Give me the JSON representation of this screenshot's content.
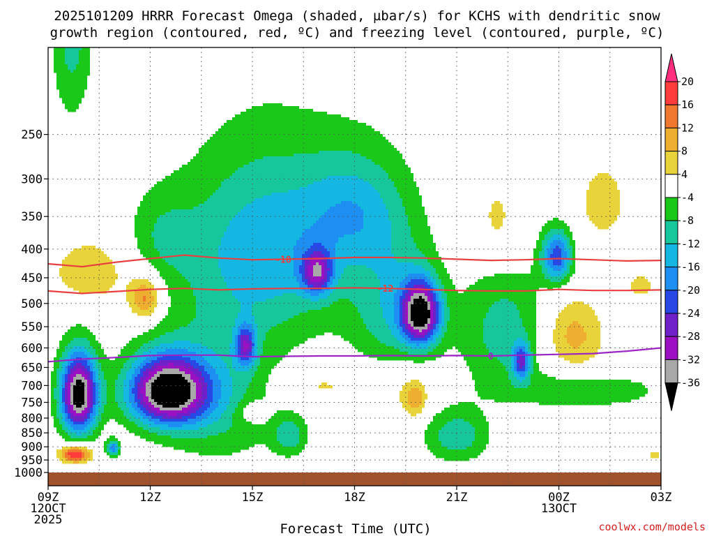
{
  "chart_data": {
    "type": "heatmap",
    "title_line1": "2025101209 HRRR Forecast Omega (shaded, µbar/s) for KCHS with dendritic snow",
    "title_line2": "growth region (contoured, red, ºC) and freezing level (contoured, purple, ºC)",
    "xlabel": "Forecast Time (UTC)",
    "credit": "coolwx.com/models",
    "xlim": [
      9,
      27
    ],
    "ylim": [
      1000,
      175
    ],
    "y_ticks": [
      {
        "label": "250",
        "p": 250
      },
      {
        "label": "300",
        "p": 300
      },
      {
        "label": "350",
        "p": 350
      },
      {
        "label": "400",
        "p": 400
      },
      {
        "label": "450",
        "p": 450
      },
      {
        "label": "500",
        "p": 500
      },
      {
        "label": "550",
        "p": 550
      },
      {
        "label": "600",
        "p": 600
      },
      {
        "label": "650",
        "p": 650
      },
      {
        "label": "700",
        "p": 700
      },
      {
        "label": "750",
        "p": 750
      },
      {
        "label": "800",
        "p": 800
      },
      {
        "label": "850",
        "p": 850
      },
      {
        "label": "900",
        "p": 900
      },
      {
        "label": "950",
        "p": 950
      },
      {
        "label": "1000",
        "p": 1000
      }
    ],
    "x_ticks": [
      {
        "t": 9,
        "lines": [
          "09Z",
          "12OCT",
          "2025"
        ]
      },
      {
        "t": 12,
        "lines": [
          "12Z"
        ]
      },
      {
        "t": 15,
        "lines": [
          "15Z"
        ]
      },
      {
        "t": 18,
        "lines": [
          "18Z"
        ]
      },
      {
        "t": 21,
        "lines": [
          "21Z"
        ]
      },
      {
        "t": 24,
        "lines": [
          "00Z",
          "13OCT"
        ]
      },
      {
        "t": 27,
        "lines": [
          "03Z"
        ]
      }
    ],
    "colorbar": {
      "levels": [
        "20",
        "16",
        "12",
        "8",
        "4",
        "-4",
        "-8",
        "-12",
        "-16",
        "-20",
        "-24",
        "-28",
        "-32",
        "-36"
      ],
      "colors": [
        "#ff2f7e",
        "#ff3c3c",
        "#f0782e",
        "#eeae30",
        "#e8d43a",
        "#ffffff",
        "#19c819",
        "#16c79c",
        "#14b7e1",
        "#1e8ff2",
        "#2848e6",
        "#7020c8",
        "#9b10c2",
        "#a8a8a8",
        "#000000"
      ]
    },
    "omega_blobs": [
      {
        "t": 9.9,
        "p": 725,
        "rt": 0.55,
        "rp": 120,
        "v": -40
      },
      {
        "t": 12.5,
        "p": 715,
        "rt": 1.15,
        "rp": 100,
        "v": -40
      },
      {
        "t": 19.95,
        "p": 520,
        "rt": 0.55,
        "rp": 65,
        "v": -36
      },
      {
        "t": 16.9,
        "p": 440,
        "rt": 0.45,
        "rp": 40,
        "v": -22
      },
      {
        "t": 14.8,
        "p": 595,
        "rt": 0.3,
        "rp": 50,
        "v": -21
      },
      {
        "t": 23.95,
        "p": 412,
        "rt": 0.45,
        "rp": 45,
        "v": -22
      },
      {
        "t": 22.9,
        "p": 635,
        "rt": 0.25,
        "rp": 45,
        "v": -20
      },
      {
        "t": 10.9,
        "p": 905,
        "rt": 0.2,
        "rp": 30,
        "v": -18
      },
      {
        "t": 9.7,
        "p": 160,
        "rt": 0.6,
        "rp": 70,
        "v": -10
      },
      {
        "t": 15.5,
        "p": 400,
        "rt": 2.6,
        "rp": 155,
        "v": -15
      },
      {
        "t": 18.0,
        "p": 340,
        "rt": 1.4,
        "rp": 80,
        "v": -10
      },
      {
        "t": 14.0,
        "p": 730,
        "rt": 1.8,
        "rp": 210,
        "v": -10
      },
      {
        "t": 19.2,
        "p": 520,
        "rt": 1.2,
        "rp": 170,
        "v": -11
      },
      {
        "t": 16.1,
        "p": 860,
        "rt": 0.5,
        "rp": 70,
        "v": -10
      },
      {
        "t": 21.0,
        "p": 860,
        "rt": 0.95,
        "rp": 95,
        "v": -11
      },
      {
        "t": 22.4,
        "p": 560,
        "rt": 1.3,
        "rp": 150,
        "v": -10
      },
      {
        "t": 24.8,
        "p": 715,
        "rt": 2.2,
        "rp": 50,
        "v": -8
      },
      {
        "t": 12.3,
        "p": 380,
        "rt": 1.0,
        "rp": 70,
        "v": -6
      },
      {
        "t": 9.8,
        "p": 928,
        "rt": 0.45,
        "rp": 32,
        "v": 22
      },
      {
        "t": 11.85,
        "p": 490,
        "rt": 0.45,
        "rp": 42,
        "v": 14
      },
      {
        "t": 10.3,
        "p": 440,
        "rt": 1.3,
        "rp": 65,
        "v": 7
      },
      {
        "t": 24.4,
        "p": 570,
        "rt": 0.9,
        "rp": 85,
        "v": 10
      },
      {
        "t": 19.8,
        "p": 740,
        "rt": 0.3,
        "rp": 50,
        "v": 10
      },
      {
        "t": 19.3,
        "p": 700,
        "rt": 0.95,
        "rp": 100,
        "v": 6
      },
      {
        "t": 22.2,
        "p": 360,
        "rt": 0.7,
        "rp": 70,
        "v": 6
      },
      {
        "t": 25.3,
        "p": 330,
        "rt": 0.8,
        "rp": 60,
        "v": 6
      },
      {
        "t": 17.0,
        "p": 700,
        "rt": 1.5,
        "rp": 55,
        "v": 5
      },
      {
        "t": 15.0,
        "p": 780,
        "rt": 0.55,
        "rp": 40,
        "v": 6
      },
      {
        "t": 26.4,
        "p": 465,
        "rt": 0.6,
        "rp": 35,
        "v": 5
      },
      {
        "t": 26.8,
        "p": 930,
        "rt": 0.25,
        "rp": 30,
        "v": 5
      }
    ],
    "contours": [
      {
        "label": "-18",
        "color": "#e84040",
        "label_t": 15.9,
        "t": [
          9,
          10,
          11,
          12,
          13,
          14,
          15,
          16,
          17,
          18,
          19,
          20,
          21,
          22,
          23,
          24,
          25,
          26,
          27
        ],
        "p": [
          425,
          430,
          422,
          416,
          410,
          415,
          418,
          417,
          416,
          414,
          414,
          415,
          417,
          419,
          418,
          416,
          418,
          420,
          419
        ]
      },
      {
        "label": "-12",
        "color": "#e84040",
        "label_t": 18.9,
        "t": [
          9,
          10,
          11,
          12,
          13,
          14,
          15,
          16,
          17,
          18,
          19,
          20,
          21,
          22,
          23,
          24,
          25,
          26,
          27
        ],
        "p": [
          475,
          480,
          476,
          472,
          470,
          473,
          471,
          470,
          470,
          469,
          470,
          472,
          474,
          475,
          475,
          472,
          474,
          474,
          473
        ]
      },
      {
        "label": "0",
        "color": "#9b25c4",
        "label_t": 22.0,
        "t": [
          9,
          10,
          11,
          12,
          13,
          14,
          15,
          16,
          17,
          18,
          19,
          20,
          21,
          22,
          23,
          24,
          25,
          26,
          27
        ],
        "p": [
          635,
          628,
          624,
          619,
          618,
          618,
          622,
          621,
          620,
          620,
          619,
          620,
          619,
          620,
          618,
          616,
          614,
          608,
          600
        ]
      }
    ]
  }
}
